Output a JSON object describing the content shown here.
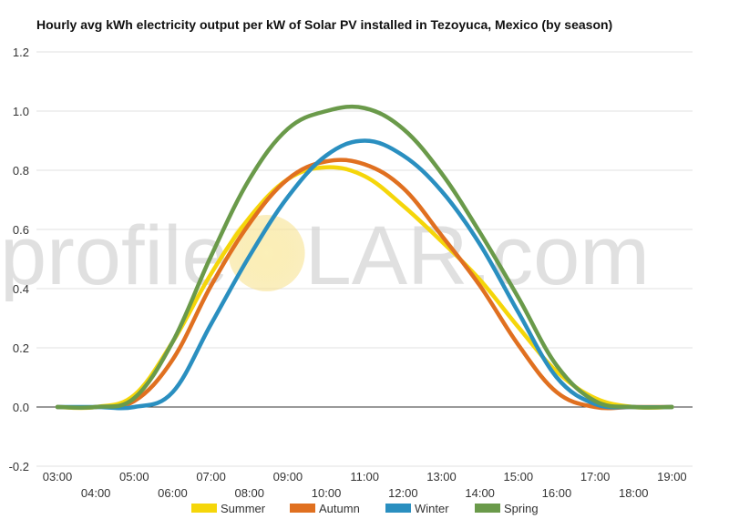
{
  "chart_data": {
    "type": "line",
    "title": "Hourly avg kWh electricity output per kW of Solar PV installed in Tezoyuca, Mexico (by season)",
    "xlabel": "",
    "ylabel": "",
    "ylim": [
      -0.2,
      1.2
    ],
    "yticks": [
      "-0.2",
      "0.0",
      "0.2",
      "0.4",
      "0.6",
      "0.8",
      "1.0",
      "1.2"
    ],
    "x": [
      "03:00",
      "04:00",
      "05:00",
      "06:00",
      "07:00",
      "08:00",
      "09:00",
      "10:00",
      "11:00",
      "12:00",
      "13:00",
      "14:00",
      "15:00",
      "16:00",
      "17:00",
      "18:00",
      "19:00"
    ],
    "grid": true,
    "legend_position": "bottom",
    "series": [
      {
        "name": "Summer",
        "color": "#f5d60a",
        "values": [
          0,
          0,
          0.04,
          0.22,
          0.45,
          0.64,
          0.77,
          0.81,
          0.78,
          0.68,
          0.56,
          0.43,
          0.27,
          0.12,
          0.03,
          0,
          0
        ]
      },
      {
        "name": "Autumn",
        "color": "#e07020",
        "values": [
          0,
          0,
          0.02,
          0.16,
          0.41,
          0.62,
          0.77,
          0.83,
          0.82,
          0.74,
          0.58,
          0.41,
          0.21,
          0.05,
          0,
          0,
          0
        ]
      },
      {
        "name": "Winter",
        "color": "#2a8fc0",
        "values": [
          0,
          0,
          0,
          0.05,
          0.28,
          0.51,
          0.71,
          0.85,
          0.9,
          0.85,
          0.73,
          0.55,
          0.32,
          0.1,
          0.01,
          0,
          0
        ]
      },
      {
        "name": "Spring",
        "color": "#6a9a4a",
        "values": [
          0,
          0,
          0.03,
          0.22,
          0.51,
          0.77,
          0.94,
          1.0,
          1.01,
          0.94,
          0.79,
          0.59,
          0.37,
          0.14,
          0.02,
          0,
          0
        ]
      }
    ]
  },
  "watermark": {
    "left": "profile",
    "sun_letter": "S",
    "right": "LAR.com",
    "sun_color": "#f7e08a"
  }
}
